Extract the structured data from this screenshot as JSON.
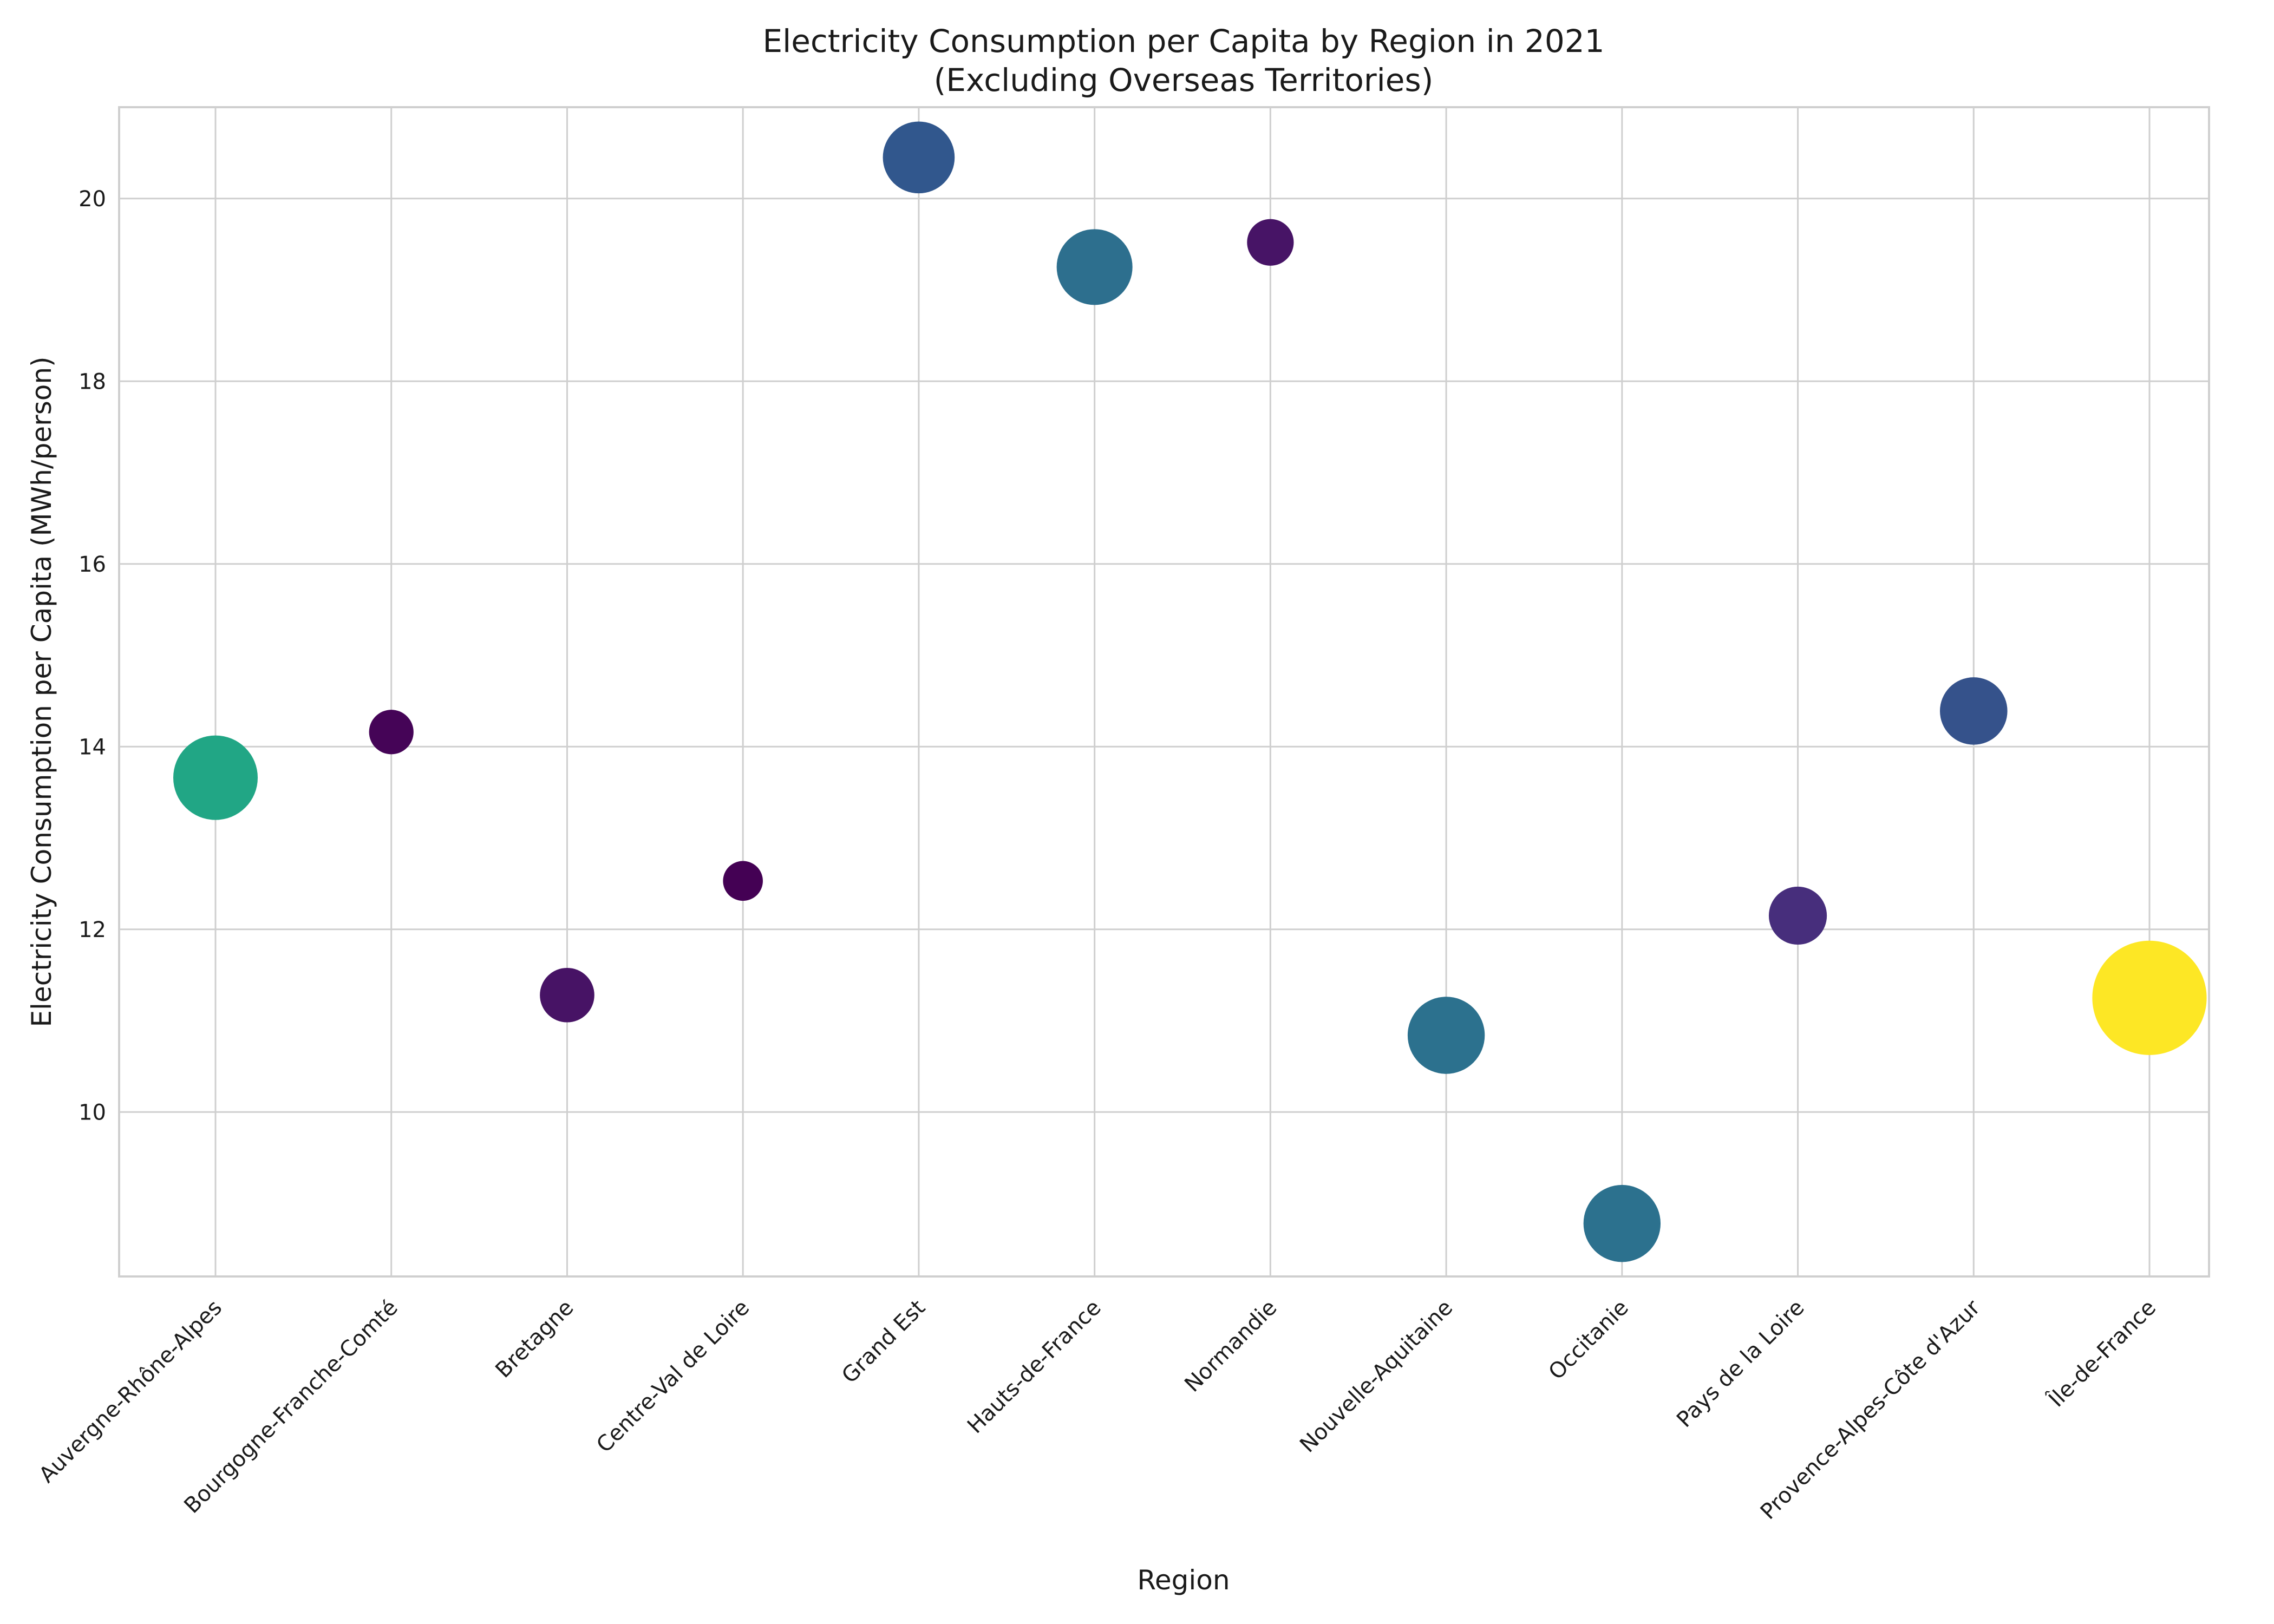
{
  "chart_data": {
    "type": "scatter",
    "title": "Electricity Consumption per Capita by Region in 2021",
    "subtitle": "(Excluding Overseas Territories)",
    "xlabel": "Region",
    "ylabel": "Electricity Consumption per Capita (MWh/person)",
    "ylim": [
      8.2,
      21.0
    ],
    "yticks": [
      10,
      12,
      14,
      16,
      18,
      20
    ],
    "grid": true,
    "legend": "none",
    "bubble_encoding": "size and color (viridis) scale with an unlabeled third variable",
    "categories": [
      "Auvergne-Rhône-Alpes",
      "Bourgogne-Franche-Comté",
      "Bretagne",
      "Centre-Val de Loire",
      "Grand Est",
      "Hauts-de-France",
      "Normandie",
      "Nouvelle-Aquitaine",
      "Occitanie",
      "Pays de la Loire",
      "Provence-Alpes-Côte d'Azur",
      "Île-de-France"
    ],
    "values": [
      13.66,
      14.16,
      11.28,
      12.53,
      20.45,
      19.25,
      19.52,
      10.84,
      8.78,
      12.15,
      14.39,
      11.25
    ],
    "bubble_colors": [
      "#21a685",
      "#450457",
      "#471365",
      "#440154",
      "#31578d",
      "#2d6f8e",
      "#471466",
      "#2c718e",
      "#2c718e",
      "#472e7c",
      "#35528b",
      "#fde725"
    ],
    "bubble_size_level": [
      0.36,
      0.1,
      0.15,
      0.08,
      0.26,
      0.29,
      0.11,
      0.3,
      0.3,
      0.17,
      0.23,
      0.66
    ]
  }
}
